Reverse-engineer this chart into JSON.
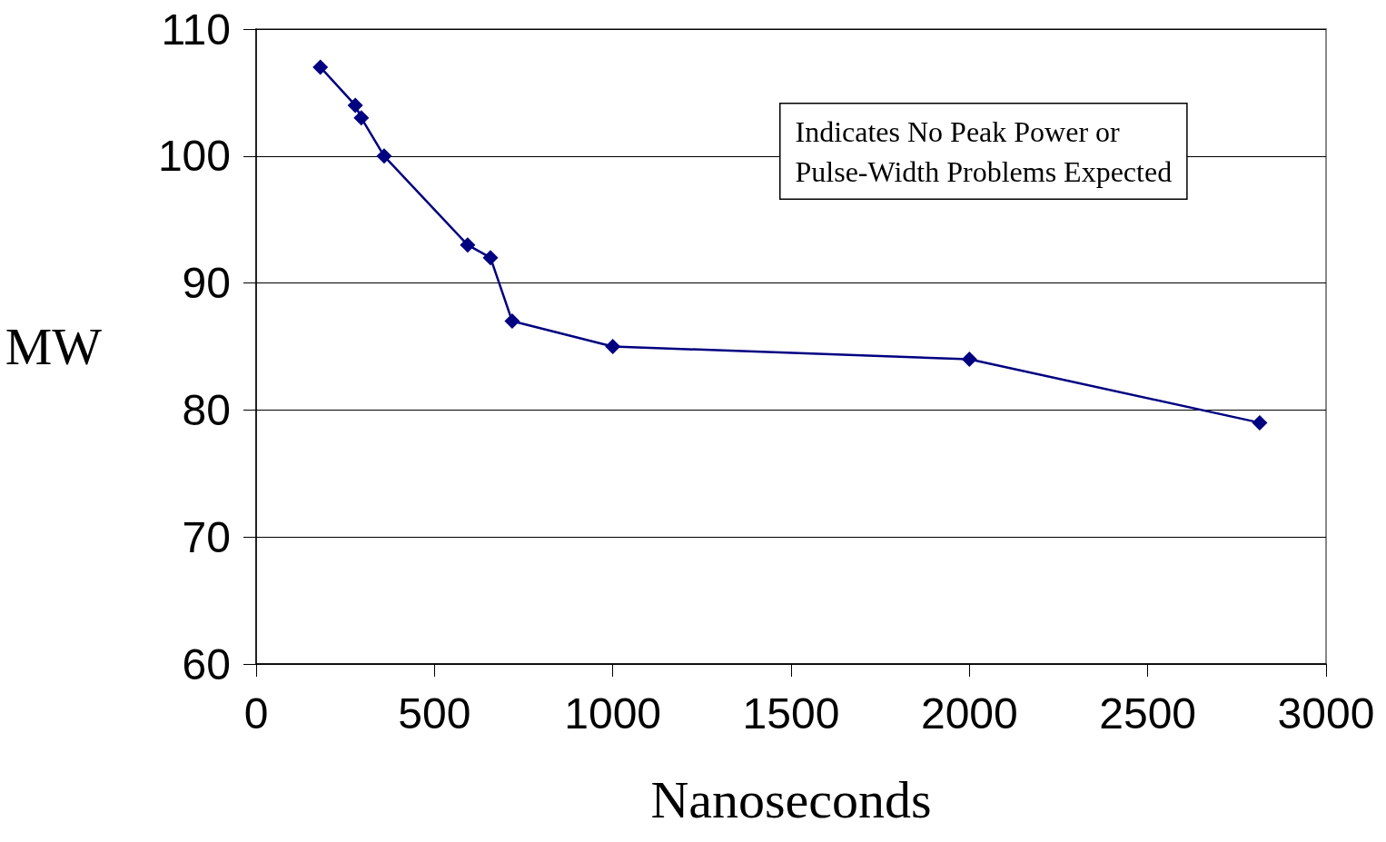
{
  "chart_data": {
    "type": "line",
    "xlabel": "Nanoseconds",
    "ylabel": "MW",
    "annotations": [
      "Indicates No Peak Power or\nPulse-Width Problems Expected"
    ],
    "x": [
      180,
      278,
      295,
      359,
      593,
      657,
      718,
      1000,
      2000,
      2814
    ],
    "series": [
      {
        "color": "#000080",
        "values": [
          107,
          104,
          103,
          100,
          93,
          92,
          87,
          85,
          84,
          79
        ]
      }
    ],
    "xlim": [
      0,
      3000
    ],
    "xticks": [
      0,
      500,
      1000,
      1500,
      2000,
      2500,
      3000
    ],
    "ylim": [
      60,
      110
    ],
    "yticks": [
      60,
      70,
      80,
      90,
      100,
      110
    ],
    "grid": "y",
    "marker": "diamond",
    "line_style": "solid"
  }
}
